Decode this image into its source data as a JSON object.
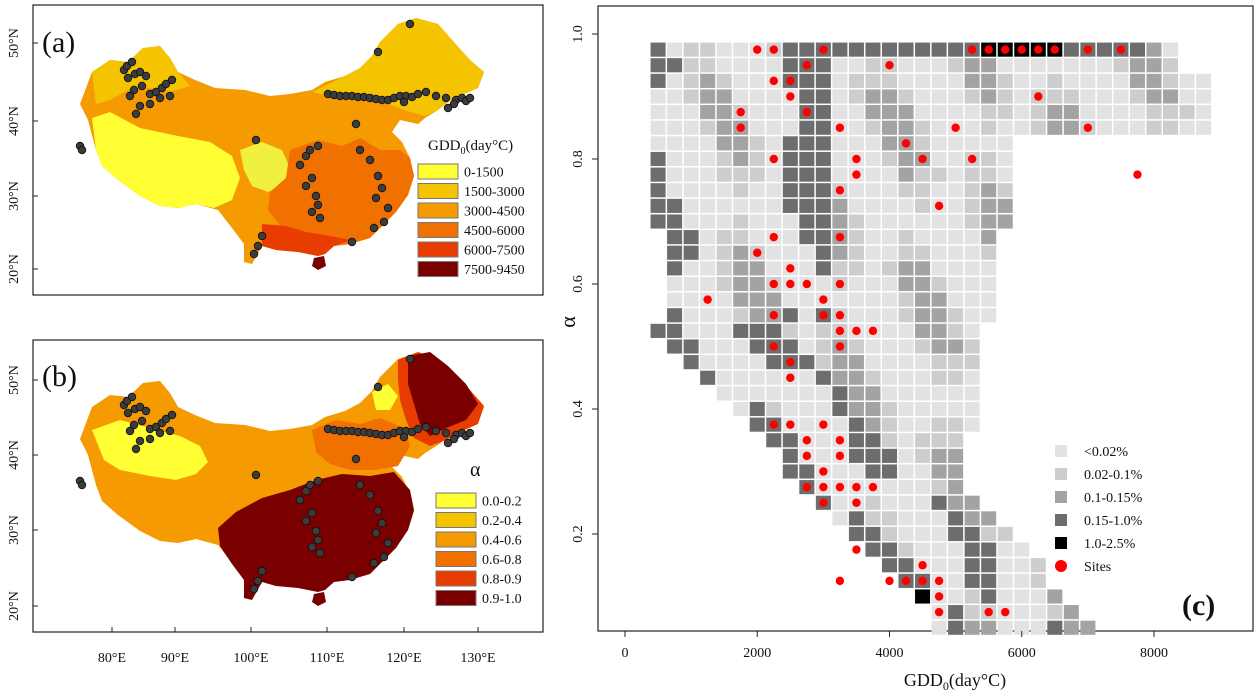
{
  "panel_a": {
    "tag": "(a)",
    "legend_title": "GDD",
    "legend_title_sub": "0",
    "legend_title_tail": "(day°C)",
    "legend": [
      {
        "label": "0-1500",
        "color": "#ffff33"
      },
      {
        "label": "1500-3000",
        "color": "#f5c400"
      },
      {
        "label": "3000-4500",
        "color": "#f59a00"
      },
      {
        "label": "4500-6000",
        "color": "#f07000"
      },
      {
        "label": "6000-7500",
        "color": "#e83c00"
      },
      {
        "label": "7500-9450",
        "color": "#7a0000"
      }
    ],
    "lat_ticks": [
      "50°N",
      "40°N",
      "30°N",
      "20°N"
    ]
  },
  "panel_b": {
    "tag": "(b)",
    "legend_title": "α",
    "legend": [
      {
        "label": "0.0-0.2",
        "color": "#ffff33"
      },
      {
        "label": "0.2-0.4",
        "color": "#f5c400"
      },
      {
        "label": "0.4-0.6",
        "color": "#f59a00"
      },
      {
        "label": "0.6-0.8",
        "color": "#f07000"
      },
      {
        "label": "0.8-0.9",
        "color": "#e83c00"
      },
      {
        "label": "0.9-1.0",
        "color": "#7a0000"
      }
    ],
    "lat_ticks": [
      "50°N",
      "40°N",
      "30°N",
      "20°N"
    ],
    "lon_ticks": [
      "80°E",
      "90°E",
      "100°E",
      "110°E",
      "120°E",
      "130°E"
    ]
  },
  "colors": {
    "site_dot_map": "#3c3c3c",
    "site_dot_c": "#ff0000",
    "china_base": "#f0f0f0"
  },
  "chart_data": {
    "type": "heatmap",
    "panel_tag": "(c)",
    "xlabel_main": "GDD",
    "xlabel_sub": "0",
    "xlabel_tail": "(day°C)",
    "ylabel": "α",
    "xlim": [
      -500,
      9500
    ],
    "ylim": [
      0.05,
      1.03
    ],
    "x_ticks": [
      0,
      2000,
      4000,
      6000,
      8000
    ],
    "y_ticks": [
      0.2,
      0.4,
      0.6,
      0.8,
      1.0
    ],
    "y_tick_labels": [
      "0.2",
      "0.4",
      "0.6",
      "0.8",
      "1.0"
    ],
    "grid": false,
    "legend_position": "bottom-right",
    "legend": [
      {
        "label": "<0.02%",
        "color": "#e2e2e2"
      },
      {
        "label": "0.02-0.1%",
        "color": "#cdcdcd"
      },
      {
        "label": "0.1-0.15%",
        "color": "#a3a3a3"
      },
      {
        "label": "0.15-1.0%",
        "color": "#6d6d6d"
      },
      {
        "label": "1.0-2.5%",
        "color": "#000000"
      },
      {
        "label": "Sites",
        "color": "#ff0000"
      }
    ],
    "sites": [
      [
        2000,
        0.975
      ],
      [
        2250,
        0.975
      ],
      [
        3000,
        0.975
      ],
      [
        5250,
        0.975
      ],
      [
        5500,
        0.975
      ],
      [
        5750,
        0.975
      ],
      [
        6000,
        0.975
      ],
      [
        6250,
        0.975
      ],
      [
        6500,
        0.975
      ],
      [
        7000,
        0.975
      ],
      [
        7500,
        0.975
      ],
      [
        2750,
        0.95
      ],
      [
        4000,
        0.95
      ],
      [
        2250,
        0.925
      ],
      [
        2500,
        0.925
      ],
      [
        2500,
        0.9
      ],
      [
        6250,
        0.9
      ],
      [
        1750,
        0.875
      ],
      [
        2750,
        0.875
      ],
      [
        1750,
        0.85
      ],
      [
        3250,
        0.85
      ],
      [
        5000,
        0.85
      ],
      [
        7000,
        0.85
      ],
      [
        4250,
        0.825
      ],
      [
        2250,
        0.8
      ],
      [
        3500,
        0.8
      ],
      [
        4500,
        0.8
      ],
      [
        5250,
        0.8
      ],
      [
        3500,
        0.775
      ],
      [
        7750,
        0.775
      ],
      [
        3250,
        0.75
      ],
      [
        4750,
        0.725
      ],
      [
        2250,
        0.675
      ],
      [
        3250,
        0.675
      ],
      [
        2000,
        0.65
      ],
      [
        2500,
        0.625
      ],
      [
        2250,
        0.6
      ],
      [
        2500,
        0.6
      ],
      [
        2750,
        0.6
      ],
      [
        3250,
        0.6
      ],
      [
        1250,
        0.575
      ],
      [
        3000,
        0.575
      ],
      [
        2250,
        0.55
      ],
      [
        3000,
        0.55
      ],
      [
        3250,
        0.55
      ],
      [
        3250,
        0.525
      ],
      [
        3500,
        0.525
      ],
      [
        3750,
        0.525
      ],
      [
        2250,
        0.5
      ],
      [
        3250,
        0.5
      ],
      [
        2500,
        0.475
      ],
      [
        2500,
        0.45
      ],
      [
        2250,
        0.375
      ],
      [
        2500,
        0.375
      ],
      [
        3000,
        0.375
      ],
      [
        2750,
        0.35
      ],
      [
        3250,
        0.35
      ],
      [
        2750,
        0.325
      ],
      [
        3250,
        0.325
      ],
      [
        3000,
        0.3
      ],
      [
        2750,
        0.275
      ],
      [
        3000,
        0.275
      ],
      [
        3250,
        0.275
      ],
      [
        3500,
        0.275
      ],
      [
        3750,
        0.275
      ],
      [
        3000,
        0.25
      ],
      [
        3500,
        0.25
      ],
      [
        3500,
        0.175
      ],
      [
        4500,
        0.15
      ],
      [
        3250,
        0.125
      ],
      [
        4000,
        0.125
      ],
      [
        4250,
        0.125
      ],
      [
        4500,
        0.125
      ],
      [
        4750,
        0.125
      ],
      [
        4750,
        0.1
      ],
      [
        4750,
        0.075
      ],
      [
        5500,
        0.075
      ],
      [
        5750,
        0.075
      ]
    ]
  }
}
